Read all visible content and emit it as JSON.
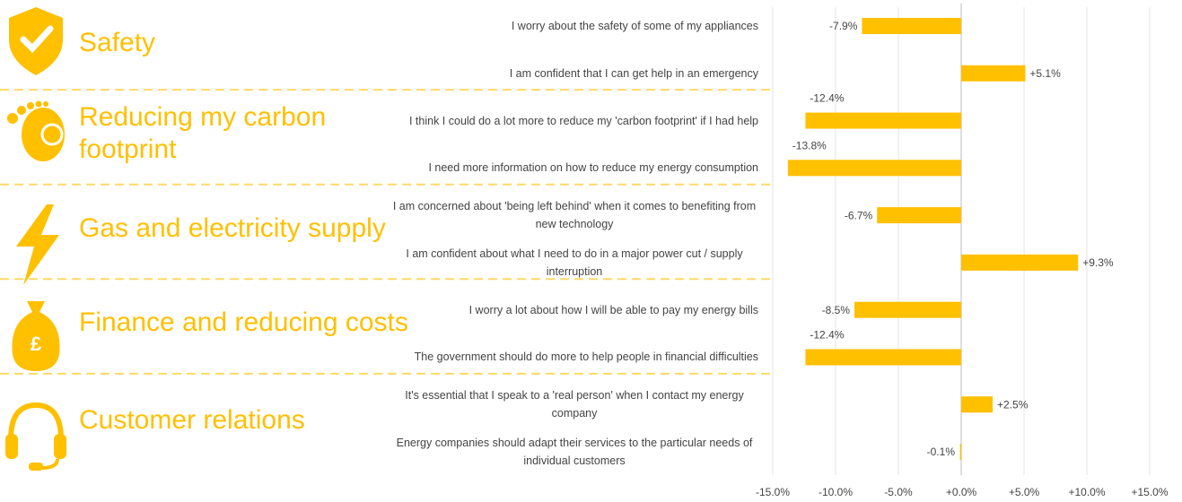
{
  "chart_data": {
    "type": "bar",
    "orientation": "horizontal",
    "groups": [
      "Safety",
      "Reducing my carbon footprint",
      "Gas and electricity supply",
      "Finance and reducing costs",
      "Customer relations"
    ],
    "categories": [
      "I worry about the safety of some of my appliances",
      "I am confident that I can get help in an emergency",
      "I think I could do a lot more to reduce my 'carbon footprint' if I had help",
      "I need more information on how to reduce my energy consumption",
      "I am concerned about 'being left behind' when it comes to benefiting from new technology",
      "I am confident about what I need to do in a major power cut / supply interruption",
      "I worry a lot about how I will be able to pay my energy bills",
      "The government should do more to help people in financial difficulties",
      "It's essential that I speak to a 'real person' when I contact my energy company",
      "Energy companies should adapt their services to the particular needs of individual customers"
    ],
    "values": [
      -7.9,
      5.1,
      -12.4,
      -13.8,
      -6.7,
      9.3,
      -8.5,
      -12.4,
      2.5,
      -0.1
    ],
    "value_labels": [
      "-7.9%",
      "+5.1%",
      "-12.4%",
      "-13.8%",
      "-6.7%",
      "+9.3%",
      "-8.5%",
      "-12.4%",
      "+2.5%",
      "-0.1%"
    ],
    "color": "#ffc000",
    "xlim": [
      -15,
      15
    ],
    "xticks": [
      {
        "value": -15,
        "label": "-15.0%"
      },
      {
        "value": -10,
        "label": "-10.0%"
      },
      {
        "value": -5,
        "label": "-5.0%"
      },
      {
        "value": 0,
        "label": "+0.0%"
      },
      {
        "value": 5,
        "label": "+5.0%"
      },
      {
        "value": 10,
        "label": "+10.0%"
      },
      {
        "value": 15,
        "label": "+15.0%"
      }
    ],
    "grid": true
  }
}
